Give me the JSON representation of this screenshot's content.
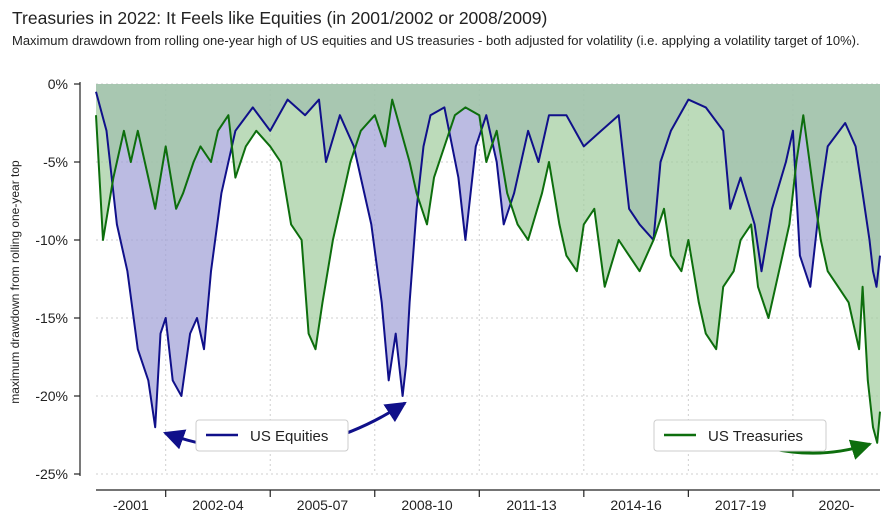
{
  "header": {
    "title": "Treasuries in 2022: It Feels like Equities (in 2001/2002 or 2008/2009)",
    "subtitle": "Maximum drawdown from rolling one-year high of US equities and US treasuries - both adjusted for volatility (i.e. applying a volatility target of 10%)."
  },
  "chart_data": {
    "type": "area",
    "ylabel": "maximum drawdown from rolling one-year top",
    "ylim": [
      -25,
      0
    ],
    "yticks": [
      {
        "value": 0,
        "label": "0%"
      },
      {
        "value": -5,
        "label": "-5%"
      },
      {
        "value": -10,
        "label": "-10%"
      },
      {
        "value": -15,
        "label": "-15%"
      },
      {
        "value": -20,
        "label": "-20%"
      },
      {
        "value": -25,
        "label": "-25%"
      }
    ],
    "xlim": [
      2000.0,
      2022.5
    ],
    "x_period_labels": [
      {
        "label": "-2001",
        "start": 2000.0,
        "end": 2002.0
      },
      {
        "label": "2002-04",
        "start": 2002.0,
        "end": 2005.0
      },
      {
        "label": "2005-07",
        "start": 2005.0,
        "end": 2008.0
      },
      {
        "label": "2008-10",
        "start": 2008.0,
        "end": 2011.0
      },
      {
        "label": "2011-13",
        "start": 2011.0,
        "end": 2014.0
      },
      {
        "label": "2014-16",
        "start": 2014.0,
        "end": 2017.0
      },
      {
        "label": "2017-19",
        "start": 2017.0,
        "end": 2020.0
      },
      {
        "label": "2020-",
        "start": 2020.0,
        "end": 2022.5
      }
    ],
    "grid": true,
    "series": [
      {
        "name": "US Equities",
        "color": "#10108a",
        "fill": "#9e9ed6",
        "x": [
          2000.0,
          2000.3,
          2000.6,
          2000.9,
          2001.2,
          2001.5,
          2001.7,
          2001.85,
          2002.0,
          2002.2,
          2002.45,
          2002.7,
          2002.9,
          2003.1,
          2003.3,
          2003.6,
          2004.0,
          2004.5,
          2005.0,
          2005.5,
          2006.0,
          2006.4,
          2006.6,
          2007.0,
          2007.4,
          2007.6,
          2007.9,
          2008.2,
          2008.4,
          2008.6,
          2008.8,
          2008.9,
          2009.0,
          2009.2,
          2009.4,
          2009.6,
          2010.0,
          2010.4,
          2010.6,
          2010.9,
          2011.2,
          2011.5,
          2011.7,
          2012.0,
          2012.4,
          2012.7,
          2013.0,
          2013.5,
          2014.0,
          2014.5,
          2015.0,
          2015.3,
          2015.6,
          2016.0,
          2016.2,
          2016.5,
          2017.0,
          2017.5,
          2018.0,
          2018.2,
          2018.5,
          2018.9,
          2019.1,
          2019.4,
          2019.8,
          2020.0,
          2020.2,
          2020.5,
          2020.8,
          2021.0,
          2021.5,
          2021.8,
          2022.0,
          2022.2,
          2022.3,
          2022.4,
          2022.5
        ],
        "values": [
          -0.5,
          -3,
          -9,
          -12,
          -17,
          -19,
          -22,
          -16,
          -15,
          -19,
          -20,
          -16,
          -15,
          -17,
          -12,
          -7,
          -3,
          -1.5,
          -3,
          -1,
          -2,
          -1,
          -5,
          -2,
          -4,
          -6,
          -9,
          -14,
          -19,
          -16,
          -20,
          -18,
          -14,
          -8,
          -4,
          -2,
          -1.5,
          -6,
          -10,
          -4,
          -2,
          -5,
          -9,
          -7,
          -3,
          -5,
          -2,
          -2,
          -4,
          -3,
          -2,
          -8,
          -9,
          -10,
          -5,
          -3,
          -1,
          -1.5,
          -3,
          -8,
          -6,
          -9,
          -12,
          -8,
          -5,
          -3,
          -11,
          -13,
          -7,
          -4,
          -2.5,
          -4,
          -7,
          -10,
          -12,
          -13,
          -11
        ]
      },
      {
        "name": "US Treasuries",
        "color": "#0d6e0d",
        "fill": "#9fcc9c",
        "x": [
          2000.0,
          2000.2,
          2000.5,
          2000.8,
          2001.0,
          2001.2,
          2001.5,
          2001.7,
          2002.0,
          2002.3,
          2002.5,
          2002.8,
          2003.0,
          2003.3,
          2003.5,
          2003.8,
          2004.0,
          2004.3,
          2004.6,
          2005.0,
          2005.3,
          2005.6,
          2005.9,
          2006.1,
          2006.3,
          2006.5,
          2006.8,
          2007.0,
          2007.3,
          2007.6,
          2008.0,
          2008.3,
          2008.5,
          2009.0,
          2009.2,
          2009.5,
          2009.7,
          2010.0,
          2010.3,
          2010.6,
          2011.0,
          2011.2,
          2011.5,
          2011.8,
          2012.1,
          2012.4,
          2012.8,
          2013.0,
          2013.3,
          2013.5,
          2013.8,
          2014.0,
          2014.3,
          2014.6,
          2015.0,
          2015.3,
          2015.6,
          2016.0,
          2016.3,
          2016.5,
          2016.8,
          2017.0,
          2017.3,
          2017.5,
          2017.8,
          2018.0,
          2018.3,
          2018.5,
          2018.8,
          2019.0,
          2019.3,
          2019.6,
          2019.9,
          2020.1,
          2020.3,
          2020.6,
          2020.8,
          2021.0,
          2021.3,
          2021.6,
          2021.9,
          2022.0,
          2022.15,
          2022.3,
          2022.42,
          2022.5
        ],
        "values": [
          -2,
          -10,
          -6,
          -3,
          -5,
          -3,
          -6,
          -8,
          -4,
          -8,
          -7,
          -5,
          -4,
          -5,
          -3,
          -2,
          -6,
          -4,
          -3,
          -4,
          -5,
          -9,
          -10,
          -16,
          -17,
          -14,
          -10,
          -8,
          -5,
          -3,
          -2,
          -4,
          -1,
          -5,
          -7,
          -9,
          -6,
          -4,
          -2,
          -1.5,
          -2,
          -5,
          -3,
          -7,
          -9,
          -10,
          -7,
          -5,
          -9,
          -11,
          -12,
          -9,
          -8,
          -13,
          -10,
          -11,
          -12,
          -10,
          -8,
          -11,
          -12,
          -10,
          -14,
          -16,
          -17,
          -13,
          -12,
          -10,
          -9,
          -13,
          -15,
          -12,
          -9,
          -5,
          -2,
          -7,
          -10,
          -12,
          -13,
          -14,
          -17,
          -13,
          -19,
          -22,
          -23,
          -21
        ]
      }
    ],
    "legend": [
      {
        "label": "US Equities",
        "placement": "lower-center-left"
      },
      {
        "label": "US Treasuries",
        "placement": "lower-right"
      }
    ],
    "annotations": [
      {
        "type": "double-arrow",
        "color": "#10108a",
        "connects": "2001 low to 2008/2009 low"
      },
      {
        "type": "arrow",
        "color": "#0d6e0d",
        "points_to": "2022 treasury low"
      }
    ]
  }
}
